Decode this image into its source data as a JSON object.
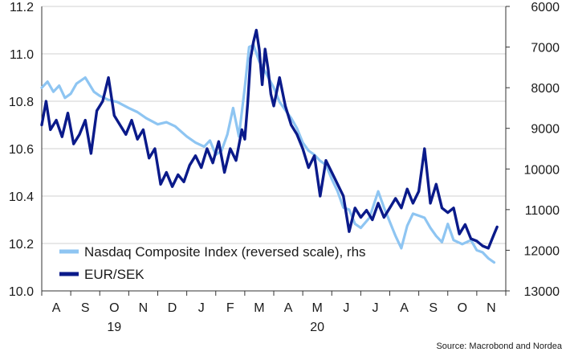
{
  "chart_data": {
    "type": "line",
    "source": "Source: Macrobond and Nordea",
    "x_month_labels": [
      "A",
      "S",
      "O",
      "N",
      "D",
      "J",
      "F",
      "M",
      "A",
      "M",
      "J",
      "J",
      "A",
      "S",
      "O",
      "N"
    ],
    "x_year_labels": [
      {
        "label": "19",
        "month_index": 2
      },
      {
        "label": "20",
        "month_index": 9
      }
    ],
    "left_axis": {
      "ylim": [
        10.0,
        11.2
      ],
      "ticks": [
        "10.0",
        "10.2",
        "10.4",
        "10.6",
        "10.8",
        "11.0",
        "11.2"
      ]
    },
    "right_axis": {
      "ylim": [
        6000,
        13000
      ],
      "reversed": true,
      "ticks": [
        "6000",
        "7000",
        "8000",
        "9000",
        "10000",
        "11000",
        "12000",
        "13000"
      ]
    },
    "series": [
      {
        "name": "Nasdaq Composite Index (reversed scale), rhs",
        "axis": "right",
        "color": "#8ec5f2",
        "x": [
          0,
          0.2,
          0.4,
          0.6,
          0.8,
          1.0,
          1.2,
          1.5,
          1.8,
          2.0,
          2.3,
          2.6,
          3.0,
          3.3,
          3.6,
          4.0,
          4.3,
          4.6,
          5.0,
          5.3,
          5.6,
          5.8,
          6.0,
          6.2,
          6.4,
          6.6,
          6.8,
          7.0,
          7.15,
          7.3,
          7.5,
          7.7,
          8.0,
          8.2,
          8.4,
          8.6,
          8.8,
          9.0,
          9.2,
          9.4,
          9.6,
          9.8,
          10.0,
          10.2,
          10.4,
          10.6,
          10.8,
          11.0,
          11.3,
          11.6,
          11.8,
          12.0,
          12.2,
          12.4,
          12.6,
          12.8,
          13.0,
          13.2,
          13.4,
          13.6,
          13.8,
          14.0,
          14.2,
          14.5,
          14.8,
          15.0,
          15.2,
          15.4,
          15.6
        ],
        "values": [
          8000,
          7850,
          8100,
          7950,
          8250,
          8150,
          7900,
          7750,
          8100,
          8200,
          8300,
          8350,
          8500,
          8600,
          8750,
          8900,
          8850,
          8950,
          9200,
          9350,
          9450,
          9300,
          9650,
          9550,
          9150,
          8500,
          9200,
          8000,
          7000,
          6950,
          7350,
          7600,
          8000,
          8350,
          8550,
          8750,
          9000,
          9350,
          9550,
          9650,
          9800,
          9900,
          10250,
          10550,
          10950,
          11000,
          11350,
          11450,
          11200,
          10550,
          10950,
          11300,
          11650,
          11950,
          11400,
          11100,
          11150,
          11200,
          11450,
          11650,
          11800,
          11350,
          11750,
          11850,
          11750,
          12000,
          12050,
          12200,
          12300
        ]
      },
      {
        "name": "EUR/SEK",
        "axis": "left",
        "color": "#0a1a8a",
        "x": [
          0,
          0.15,
          0.3,
          0.5,
          0.7,
          0.9,
          1.1,
          1.3,
          1.5,
          1.7,
          1.9,
          2.1,
          2.3,
          2.5,
          2.7,
          2.9,
          3.1,
          3.3,
          3.5,
          3.7,
          3.9,
          4.1,
          4.3,
          4.5,
          4.7,
          4.9,
          5.1,
          5.3,
          5.5,
          5.7,
          5.9,
          6.1,
          6.3,
          6.5,
          6.7,
          6.9,
          7.0,
          7.1,
          7.2,
          7.3,
          7.4,
          7.5,
          7.6,
          7.7,
          7.8,
          7.9,
          8.0,
          8.2,
          8.4,
          8.6,
          8.8,
          9.0,
          9.2,
          9.4,
          9.6,
          9.8,
          10.0,
          10.2,
          10.4,
          10.6,
          10.8,
          11.0,
          11.2,
          11.4,
          11.6,
          11.8,
          12.0,
          12.2,
          12.4,
          12.6,
          12.8,
          13.0,
          13.2,
          13.4,
          13.6,
          13.8,
          14.0,
          14.2,
          14.4,
          14.6,
          14.8,
          15.0,
          15.2,
          15.4,
          15.6,
          15.7
        ],
        "values": [
          10.7,
          10.8,
          10.68,
          10.72,
          10.65,
          10.75,
          10.62,
          10.66,
          10.72,
          10.58,
          10.76,
          10.8,
          10.9,
          10.74,
          10.7,
          10.66,
          10.72,
          10.64,
          10.68,
          10.56,
          10.6,
          10.45,
          10.5,
          10.44,
          10.49,
          10.46,
          10.53,
          10.57,
          10.52,
          10.6,
          10.54,
          10.63,
          10.5,
          10.6,
          10.55,
          10.68,
          10.64,
          10.79,
          10.98,
          11.05,
          11.1,
          11.02,
          10.87,
          11.02,
          10.94,
          10.83,
          10.78,
          10.9,
          10.78,
          10.7,
          10.66,
          10.6,
          10.52,
          10.57,
          10.4,
          10.55,
          10.5,
          10.45,
          10.4,
          10.25,
          10.35,
          10.31,
          10.34,
          10.3,
          10.37,
          10.31,
          10.35,
          10.39,
          10.35,
          10.43,
          10.37,
          10.42,
          10.6,
          10.37,
          10.45,
          10.35,
          10.33,
          10.35,
          10.24,
          10.28,
          10.22,
          10.21,
          10.19,
          10.18,
          10.24,
          10.27
        ]
      }
    ]
  }
}
